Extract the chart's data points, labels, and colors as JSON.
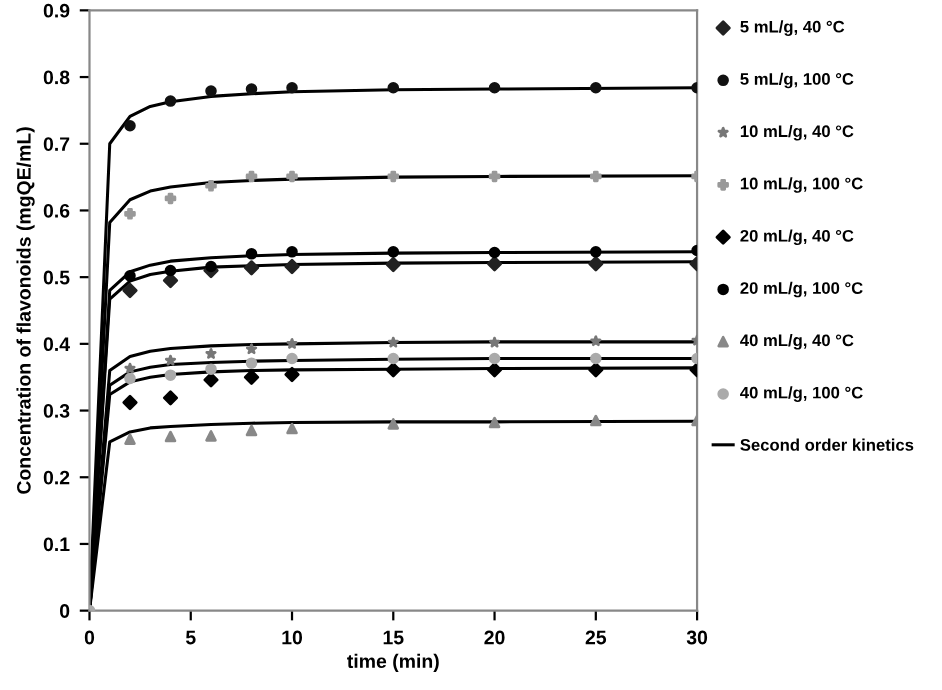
{
  "chart_data": {
    "type": "scatter",
    "xlabel": "time (min)",
    "ylabel": "Concentration of flavonoids (mgQE/mL)",
    "xlim": [
      0,
      30
    ],
    "ylim": [
      0,
      0.9
    ],
    "xticks": [
      0,
      5,
      10,
      15,
      20,
      25,
      30
    ],
    "yticks": [
      0,
      0.1,
      0.2,
      0.3,
      0.4,
      0.5,
      0.6,
      0.7,
      0.8,
      0.9
    ],
    "grid": false,
    "legend": "right",
    "x": [
      0,
      2,
      4,
      6,
      8,
      10,
      15,
      20,
      25,
      30
    ],
    "series": [
      {
        "name": "5 mL/g, 40 °C",
        "color": "#222222",
        "marker": "diamond",
        "values": [
          null,
          0.48,
          0.495,
          0.51,
          0.514,
          0.516,
          0.519,
          0.52,
          0.52,
          0.52
        ]
      },
      {
        "name": "5 mL/g, 100 °C",
        "color": "#111111",
        "marker": "circle",
        "values": [
          null,
          0.727,
          0.764,
          0.779,
          0.782,
          0.784,
          0.784,
          0.784,
          0.784,
          0.784
        ]
      },
      {
        "name": "10 mL/g, 40 °C",
        "color": "#777777",
        "marker": "star",
        "values": [
          null,
          0.363,
          0.375,
          0.385,
          0.392,
          0.4,
          0.402,
          0.402,
          0.404,
          0.405
        ]
      },
      {
        "name": "10 mL/g, 100 °C",
        "color": "#999999",
        "marker": "cross",
        "values": [
          null,
          0.595,
          0.618,
          0.637,
          0.651,
          0.651,
          0.651,
          0.651,
          0.651,
          0.651
        ]
      },
      {
        "name": "20 mL/g, 40 °C",
        "color": "#000000",
        "marker": "diamond",
        "values": [
          null,
          0.312,
          0.319,
          0.346,
          0.35,
          0.354,
          0.361,
          0.361,
          0.361,
          0.361
        ]
      },
      {
        "name": "20 mL/g, 100 °C",
        "color": "#000000",
        "marker": "circle",
        "values": [
          null,
          0.502,
          0.51,
          0.516,
          0.535,
          0.538,
          0.538,
          0.537,
          0.538,
          0.54
        ]
      },
      {
        "name": "40 mL/g, 40 °C",
        "color": "#888888",
        "marker": "triangle",
        "values": [
          null,
          0.257,
          0.261,
          0.262,
          0.27,
          0.273,
          0.28,
          0.282,
          0.285,
          0.285
        ]
      },
      {
        "name": "40 mL/g, 100 °C",
        "color": "#aaaaaa",
        "marker": "circle",
        "values": [
          0,
          0.348,
          0.353,
          0.362,
          0.371,
          0.378,
          0.378,
          0.378,
          0.378,
          0.378
        ]
      },
      {
        "name": "Second order kinetics",
        "type": "line",
        "color": "#000000",
        "marker": "none",
        "x": [
          0,
          1,
          2,
          3,
          4,
          6,
          8,
          10,
          15,
          20,
          30
        ],
        "values": [
          0,
          0.7,
          0.741,
          0.756,
          0.763,
          0.771,
          0.775,
          0.778,
          0.781,
          0.782,
          0.784
        ]
      },
      {
        "type": "line",
        "color": "#000000",
        "marker": "none",
        "x": [
          0,
          1,
          2,
          3,
          4,
          6,
          8,
          10,
          15,
          20,
          30
        ],
        "values": [
          0,
          0.582,
          0.616,
          0.629,
          0.635,
          0.642,
          0.645,
          0.647,
          0.65,
          0.651,
          0.652
        ]
      },
      {
        "type": "line",
        "color": "#000000",
        "marker": "none",
        "x": [
          0,
          1,
          2,
          3,
          4,
          6,
          8,
          10,
          15,
          20,
          30
        ],
        "values": [
          0,
          0.48,
          0.508,
          0.518,
          0.524,
          0.529,
          0.532,
          0.534,
          0.536,
          0.537,
          0.538
        ]
      },
      {
        "type": "line",
        "color": "#000000",
        "marker": "none",
        "x": [
          0,
          1,
          2,
          3,
          4,
          6,
          8,
          10,
          15,
          20,
          30
        ],
        "values": [
          0,
          0.467,
          0.494,
          0.504,
          0.509,
          0.515,
          0.517,
          0.519,
          0.521,
          0.522,
          0.523
        ]
      },
      {
        "type": "line",
        "color": "#000000",
        "marker": "none",
        "x": [
          0,
          1,
          2,
          3,
          4,
          6,
          8,
          10,
          15,
          20,
          30
        ],
        "values": [
          0,
          0.36,
          0.381,
          0.389,
          0.393,
          0.397,
          0.399,
          0.4,
          0.402,
          0.403,
          0.403
        ]
      },
      {
        "type": "line",
        "color": "#000000",
        "marker": "none",
        "x": [
          0,
          1,
          2,
          3,
          4,
          6,
          8,
          10,
          15,
          20,
          30
        ],
        "values": [
          0,
          0.338,
          0.358,
          0.365,
          0.369,
          0.372,
          0.374,
          0.375,
          0.377,
          0.378,
          0.378
        ]
      },
      {
        "type": "line",
        "color": "#000000",
        "marker": "none",
        "x": [
          0,
          1,
          2,
          3,
          4,
          6,
          8,
          10,
          15,
          20,
          30
        ],
        "values": [
          0,
          0.324,
          0.343,
          0.35,
          0.354,
          0.358,
          0.36,
          0.361,
          0.362,
          0.363,
          0.364
        ]
      },
      {
        "type": "line",
        "color": "#000000",
        "marker": "none",
        "x": [
          0,
          1,
          2,
          3,
          4,
          6,
          8,
          10,
          15,
          20,
          30
        ],
        "values": [
          0,
          0.253,
          0.268,
          0.274,
          0.276,
          0.279,
          0.281,
          0.282,
          0.283,
          0.283,
          0.284
        ]
      }
    ]
  }
}
